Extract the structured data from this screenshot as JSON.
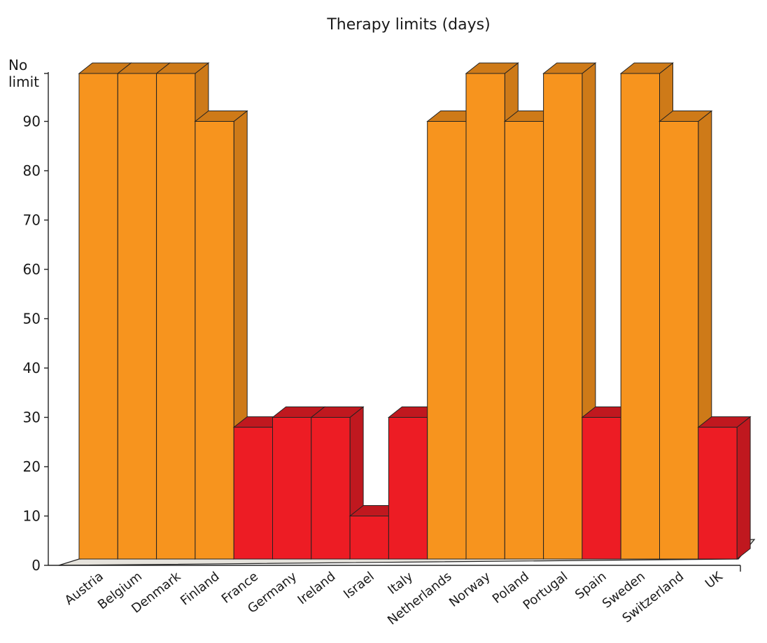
{
  "chart_data": {
    "type": "bar",
    "title": "Therapy limits (days)",
    "xlabel": "",
    "ylabel": "",
    "ylim": [
      0,
      100
    ],
    "yticks": [
      0,
      10,
      20,
      30,
      40,
      50,
      60,
      70,
      80,
      90
    ],
    "top_tick_label": [
      "No",
      "limit"
    ],
    "categories": [
      "Austria",
      "Belgium",
      "Denmark",
      "Finland",
      "France",
      "Germany",
      "Ireland",
      "Israel",
      "Italy",
      "Netherlands",
      "Norway",
      "Poland",
      "Portugal",
      "Spain",
      "Sweden",
      "Switzerland",
      "UK"
    ],
    "values": [
      "No limit",
      "No limit",
      "No limit",
      90,
      28,
      30,
      30,
      10,
      30,
      90,
      "No limit",
      90,
      "No limit",
      30,
      "No limit",
      90,
      28
    ],
    "colors": {
      "long": "#F7941E",
      "long_side": "#CE7A18",
      "short": "#ED1C24",
      "short_side": "#C0181F",
      "floor": "#E6E3DC",
      "outline": "#222222"
    }
  }
}
